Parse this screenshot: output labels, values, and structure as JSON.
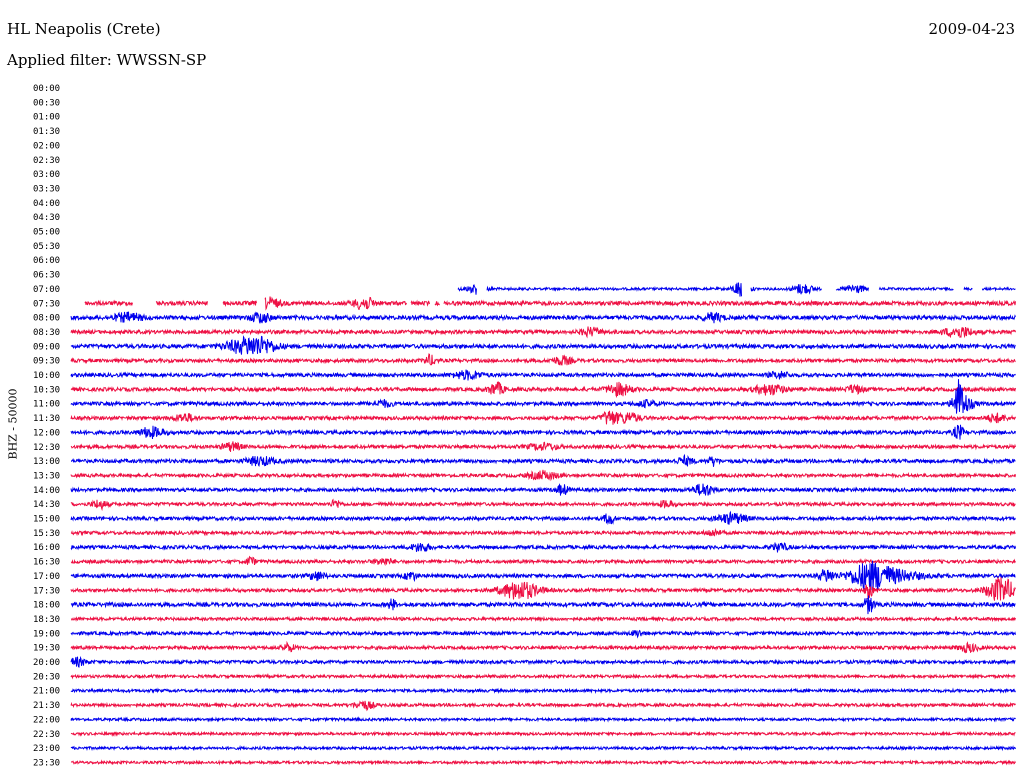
{
  "header": {
    "station": "HL Neapolis (Crete)",
    "date": "2009-04-23",
    "filter_label": "Applied filter: WWSSN-SP",
    "channel_label": "BHZ - 50000"
  },
  "chart_data": {
    "type": "line",
    "title": "HL Neapolis (Crete)",
    "subtitle": "Applied filter: WWSSN-SP",
    "ylabel": "BHZ - 50000",
    "colors": {
      "trace_a": "#0000ee",
      "trace_b": "#ee1144"
    },
    "rows": [
      {
        "time": "00:00",
        "color": "#0000ee",
        "start": null,
        "amp": 0,
        "events": []
      },
      {
        "time": "00:30",
        "color": "#ee1144",
        "start": null,
        "amp": 0,
        "events": []
      },
      {
        "time": "01:00",
        "color": "#0000ee",
        "start": null,
        "amp": 0,
        "events": []
      },
      {
        "time": "01:30",
        "color": "#ee1144",
        "start": null,
        "amp": 0,
        "events": []
      },
      {
        "time": "02:00",
        "color": "#0000ee",
        "start": null,
        "amp": 0,
        "events": []
      },
      {
        "time": "02:30",
        "color": "#ee1144",
        "start": null,
        "amp": 0,
        "events": []
      },
      {
        "time": "03:00",
        "color": "#0000ee",
        "start": null,
        "amp": 0,
        "events": []
      },
      {
        "time": "03:30",
        "color": "#ee1144",
        "start": null,
        "amp": 0,
        "events": []
      },
      {
        "time": "04:00",
        "color": "#0000ee",
        "start": null,
        "amp": 0,
        "events": []
      },
      {
        "time": "04:30",
        "color": "#ee1144",
        "start": null,
        "amp": 0,
        "events": []
      },
      {
        "time": "05:00",
        "color": "#0000ee",
        "start": null,
        "amp": 0,
        "events": []
      },
      {
        "time": "05:30",
        "color": "#ee1144",
        "start": null,
        "amp": 0,
        "events": []
      },
      {
        "time": "06:00",
        "color": "#0000ee",
        "start": null,
        "amp": 0,
        "events": []
      },
      {
        "time": "06:30",
        "color": "#ee1144",
        "start": null,
        "amp": 0,
        "events": []
      },
      {
        "time": "07:00",
        "color": "#0000ee",
        "start": 0.41,
        "amp": 1.2,
        "gaps": [
          [
            0.43,
            0.44
          ],
          [
            0.71,
            0.72
          ],
          [
            0.795,
            0.81
          ],
          [
            0.845,
            0.855
          ],
          [
            0.935,
            0.945
          ],
          [
            0.955,
            0.965
          ]
        ],
        "events": [
          [
            0.39,
            0.012,
            5
          ],
          [
            0.43,
            0.01,
            5
          ],
          [
            0.71,
            0.008,
            9
          ],
          [
            0.775,
            0.01,
            5
          ],
          [
            0.83,
            0.01,
            4
          ]
        ]
      },
      {
        "time": "07:30",
        "color": "#ee1144",
        "start": 0.015,
        "amp": 2.0,
        "gaps": [
          [
            0.065,
            0.09
          ],
          [
            0.145,
            0.16
          ],
          [
            0.197,
            0.205
          ],
          [
            0.355,
            0.36
          ],
          [
            0.38,
            0.385
          ],
          [
            0.39,
            0.395
          ]
        ],
        "events": [
          [
            0.21,
            0.01,
            5
          ],
          [
            0.31,
            0.01,
            6
          ]
        ]
      },
      {
        "time": "08:00",
        "color": "#0000ee",
        "start": 0.0,
        "amp": 2.0,
        "events": [
          [
            0.06,
            0.015,
            4
          ],
          [
            0.2,
            0.01,
            5
          ],
          [
            0.68,
            0.01,
            4
          ]
        ]
      },
      {
        "time": "08:30",
        "color": "#ee1144",
        "start": 0.0,
        "amp": 1.8,
        "events": [
          [
            0.55,
            0.01,
            4
          ],
          [
            0.94,
            0.015,
            5
          ]
        ]
      },
      {
        "time": "09:00",
        "color": "#0000ee",
        "start": 0.0,
        "amp": 2.0,
        "events": [
          [
            0.18,
            0.02,
            5
          ],
          [
            0.2,
            0.018,
            7
          ]
        ]
      },
      {
        "time": "09:30",
        "color": "#ee1144",
        "start": 0.0,
        "amp": 1.7,
        "events": [
          [
            0.38,
            0.006,
            5
          ],
          [
            0.52,
            0.01,
            4
          ]
        ]
      },
      {
        "time": "10:00",
        "color": "#0000ee",
        "start": 0.0,
        "amp": 1.8,
        "events": [
          [
            0.42,
            0.015,
            4
          ],
          [
            0.75,
            0.01,
            3
          ]
        ]
      },
      {
        "time": "10:30",
        "color": "#ee1144",
        "start": 0.0,
        "amp": 1.8,
        "events": [
          [
            0.45,
            0.008,
            6
          ],
          [
            0.58,
            0.012,
            6
          ],
          [
            0.74,
            0.015,
            5
          ],
          [
            0.83,
            0.008,
            4
          ]
        ]
      },
      {
        "time": "11:00",
        "color": "#0000ee",
        "start": 0.0,
        "amp": 1.8,
        "events": [
          [
            0.33,
            0.01,
            3
          ],
          [
            0.61,
            0.01,
            3
          ],
          [
            0.94,
            0.005,
            18
          ],
          [
            0.945,
            0.01,
            8
          ]
        ]
      },
      {
        "time": "11:30",
        "color": "#ee1144",
        "start": 0.0,
        "amp": 1.7,
        "events": [
          [
            0.12,
            0.01,
            4
          ],
          [
            0.57,
            0.008,
            7
          ],
          [
            0.59,
            0.012,
            5
          ],
          [
            0.98,
            0.01,
            4
          ]
        ]
      },
      {
        "time": "12:00",
        "color": "#0000ee",
        "start": 0.0,
        "amp": 1.8,
        "events": [
          [
            0.085,
            0.012,
            5
          ],
          [
            0.94,
            0.005,
            7
          ]
        ]
      },
      {
        "time": "12:30",
        "color": "#ee1144",
        "start": 0.0,
        "amp": 1.7,
        "events": [
          [
            0.17,
            0.01,
            4
          ],
          [
            0.5,
            0.015,
            3
          ]
        ]
      },
      {
        "time": "13:00",
        "color": "#0000ee",
        "start": 0.0,
        "amp": 1.8,
        "events": [
          [
            0.2,
            0.015,
            4
          ],
          [
            0.65,
            0.008,
            4
          ],
          [
            0.68,
            0.005,
            4
          ]
        ]
      },
      {
        "time": "13:30",
        "color": "#ee1144",
        "start": 0.0,
        "amp": 1.6,
        "events": [
          [
            0.5,
            0.015,
            4
          ]
        ]
      },
      {
        "time": "14:00",
        "color": "#0000ee",
        "start": 0.0,
        "amp": 1.7,
        "events": [
          [
            0.52,
            0.006,
            5
          ],
          [
            0.67,
            0.01,
            6
          ]
        ]
      },
      {
        "time": "14:30",
        "color": "#ee1144",
        "start": 0.0,
        "amp": 1.6,
        "events": [
          [
            0.03,
            0.008,
            4
          ],
          [
            0.28,
            0.005,
            4
          ],
          [
            0.63,
            0.008,
            3
          ]
        ]
      },
      {
        "time": "15:00",
        "color": "#0000ee",
        "start": 0.0,
        "amp": 1.7,
        "events": [
          [
            0.57,
            0.005,
            6
          ],
          [
            0.7,
            0.015,
            5
          ]
        ]
      },
      {
        "time": "15:30",
        "color": "#ee1144",
        "start": 0.0,
        "amp": 1.6,
        "events": [
          [
            0.68,
            0.008,
            3
          ]
        ]
      },
      {
        "time": "16:00",
        "color": "#0000ee",
        "start": 0.0,
        "amp": 1.7,
        "events": [
          [
            0.37,
            0.01,
            4
          ],
          [
            0.75,
            0.008,
            4
          ]
        ]
      },
      {
        "time": "16:30",
        "color": "#ee1144",
        "start": 0.0,
        "amp": 1.6,
        "events": [
          [
            0.19,
            0.004,
            5
          ],
          [
            0.33,
            0.01,
            3
          ]
        ]
      },
      {
        "time": "17:00",
        "color": "#0000ee",
        "start": 0.0,
        "amp": 1.8,
        "events": [
          [
            0.26,
            0.008,
            4
          ],
          [
            0.36,
            0.006,
            4
          ],
          [
            0.8,
            0.008,
            6
          ],
          [
            0.845,
            0.02,
            12
          ],
          [
            0.87,
            0.03,
            5
          ]
        ]
      },
      {
        "time": "17:30",
        "color": "#ee1144",
        "start": 0.0,
        "amp": 1.6,
        "events": [
          [
            0.475,
            0.02,
            9
          ],
          [
            0.845,
            0.004,
            8
          ],
          [
            0.985,
            0.015,
            12
          ]
        ]
      },
      {
        "time": "18:00",
        "color": "#0000ee",
        "start": 0.0,
        "amp": 2.0,
        "events": [
          [
            0.34,
            0.004,
            5
          ],
          [
            0.845,
            0.005,
            8
          ]
        ]
      },
      {
        "time": "18:30",
        "color": "#ee1144",
        "start": 0.0,
        "amp": 1.5,
        "events": []
      },
      {
        "time": "19:00",
        "color": "#0000ee",
        "start": 0.0,
        "amp": 1.6,
        "events": [
          [
            0.6,
            0.006,
            3
          ]
        ]
      },
      {
        "time": "19:30",
        "color": "#ee1144",
        "start": 0.0,
        "amp": 1.6,
        "events": [
          [
            0.23,
            0.006,
            4
          ],
          [
            0.95,
            0.01,
            4
          ]
        ]
      },
      {
        "time": "20:00",
        "color": "#0000ee",
        "start": 0.0,
        "amp": 1.6,
        "events": [
          [
            0.005,
            0.01,
            4
          ]
        ]
      },
      {
        "time": "20:30",
        "color": "#ee1144",
        "start": 0.0,
        "amp": 1.4,
        "events": []
      },
      {
        "time": "21:00",
        "color": "#0000ee",
        "start": 0.0,
        "amp": 1.4,
        "events": []
      },
      {
        "time": "21:30",
        "color": "#ee1144",
        "start": 0.0,
        "amp": 1.5,
        "events": [
          [
            0.31,
            0.01,
            4
          ]
        ]
      },
      {
        "time": "22:00",
        "color": "#0000ee",
        "start": 0.0,
        "amp": 1.3,
        "events": []
      },
      {
        "time": "22:30",
        "color": "#ee1144",
        "start": 0.0,
        "amp": 1.3,
        "events": []
      },
      {
        "time": "23:00",
        "color": "#0000ee",
        "start": 0.0,
        "amp": 1.3,
        "events": []
      },
      {
        "time": "23:30",
        "color": "#ee1144",
        "start": 0.0,
        "amp": 1.3,
        "events": []
      }
    ]
  }
}
